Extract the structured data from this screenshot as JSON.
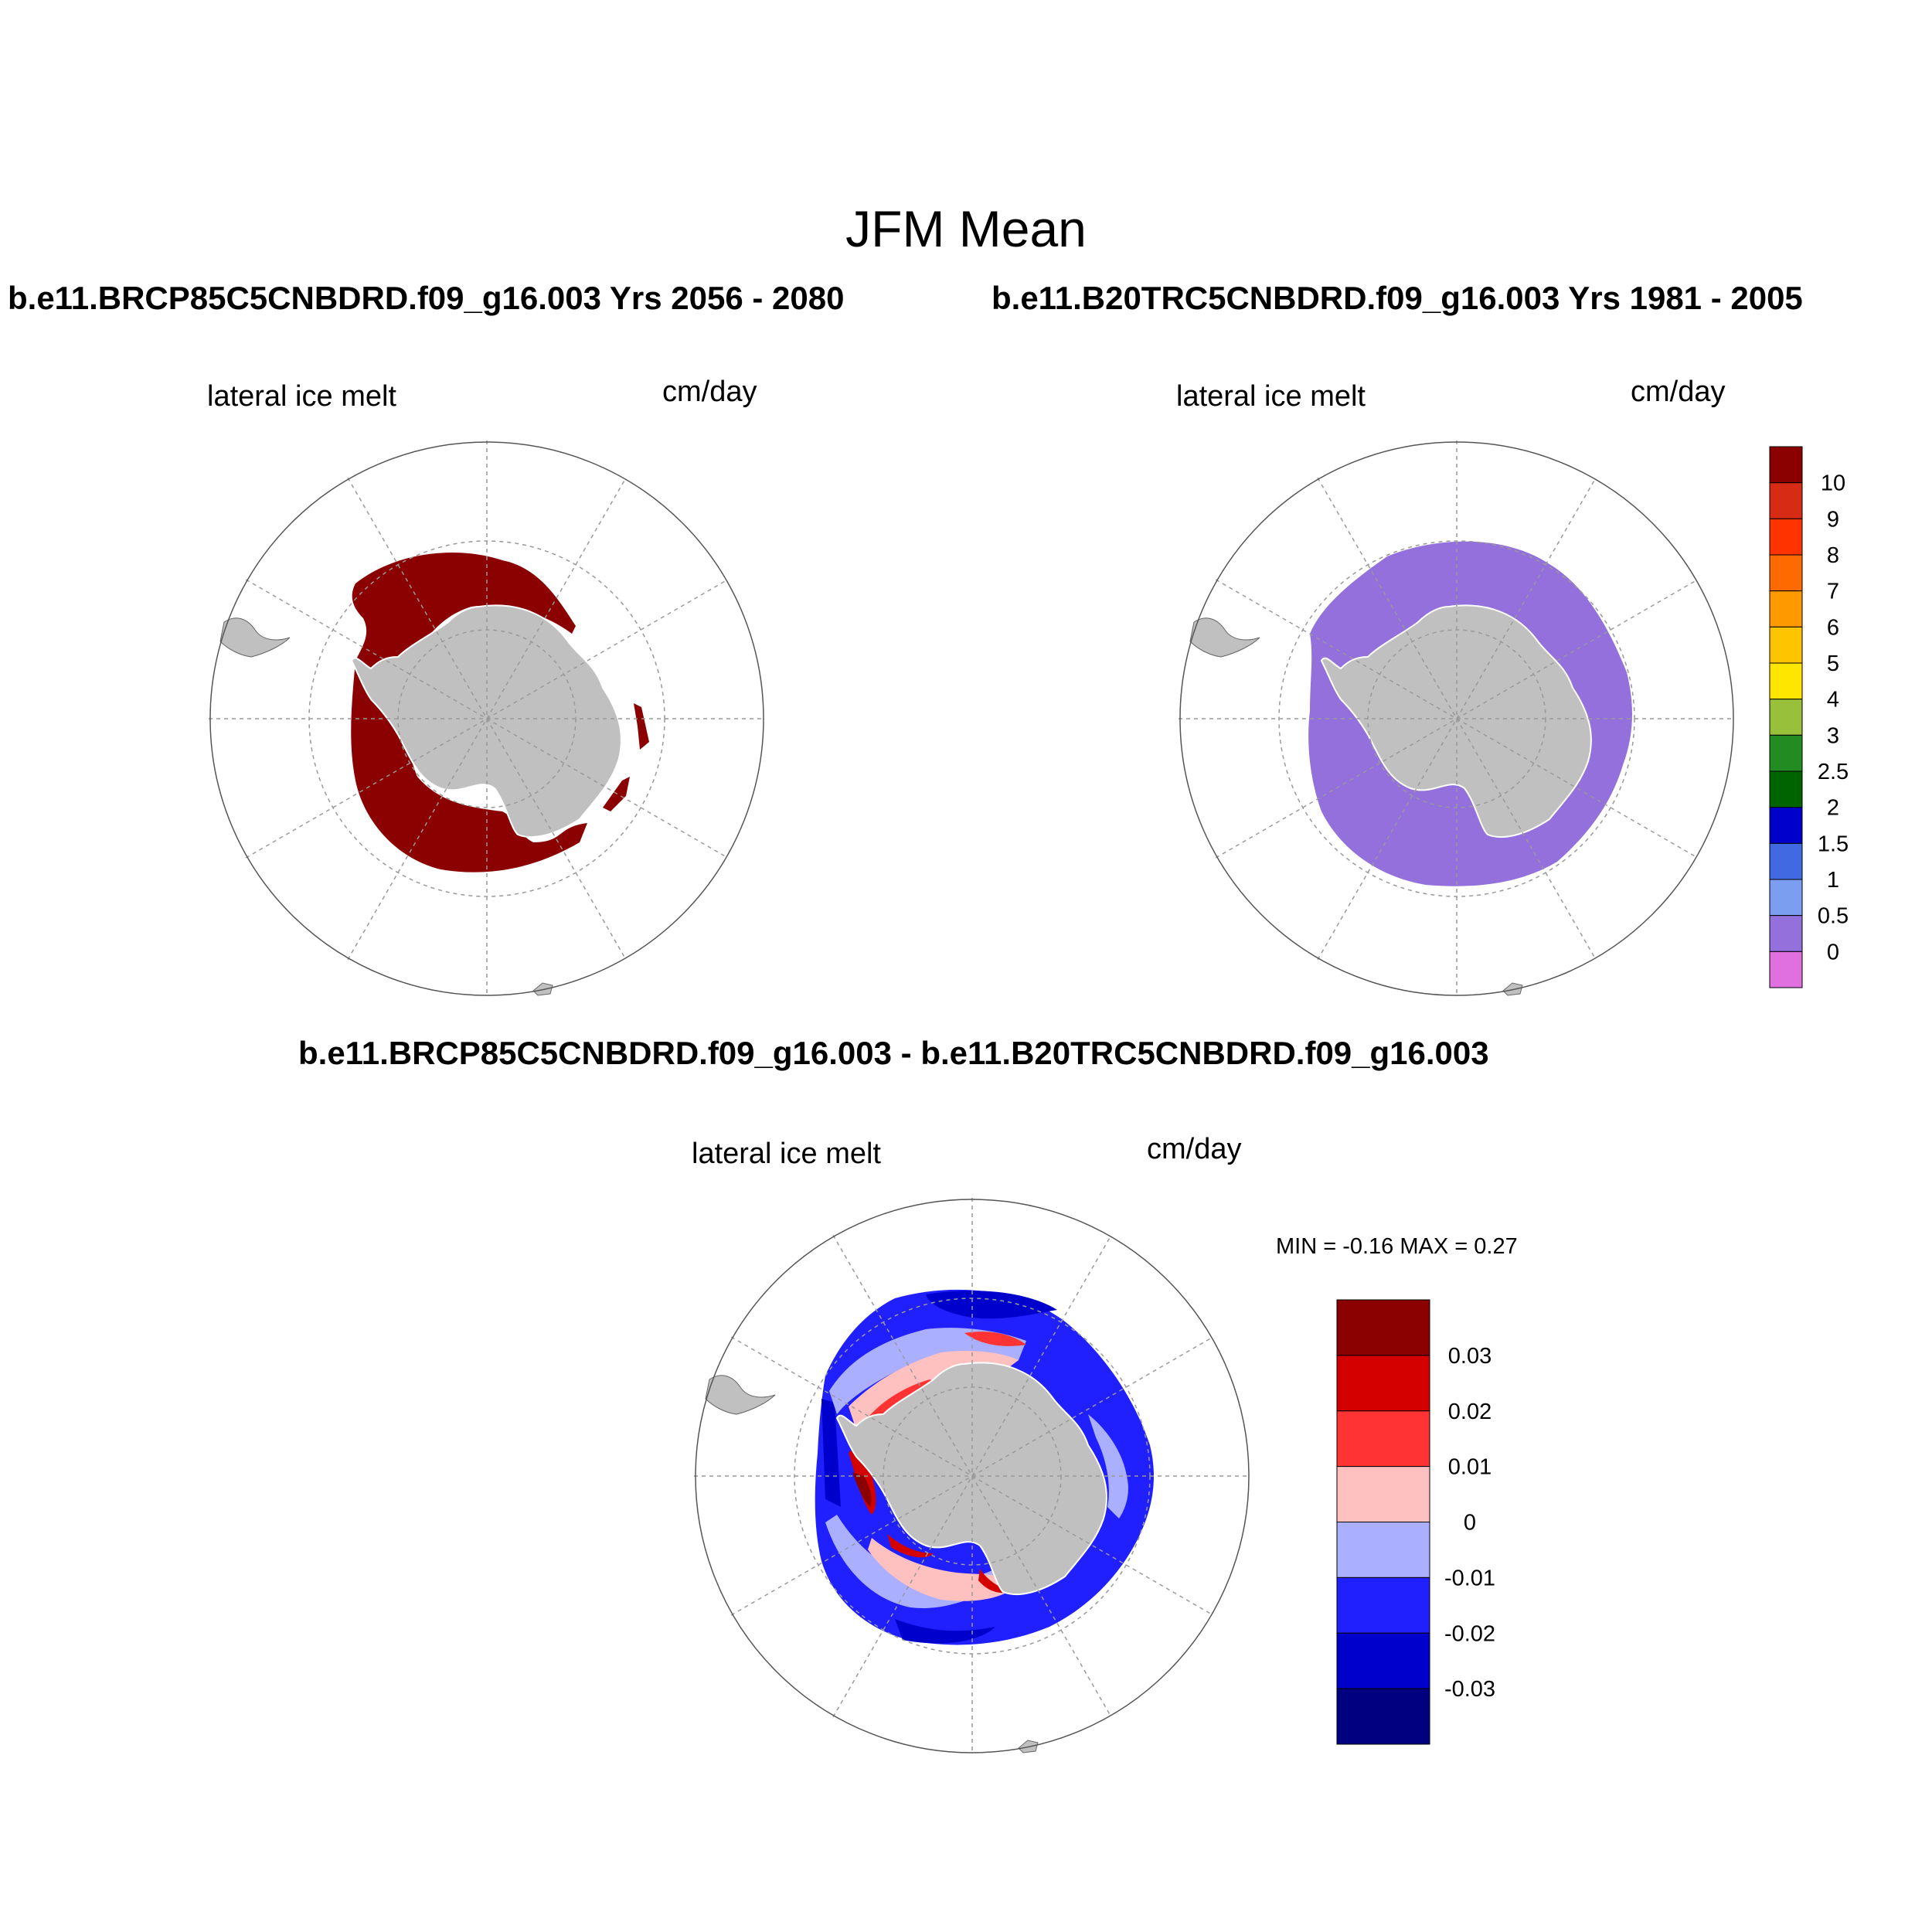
{
  "figure": {
    "title": "JFM Mean",
    "panels": [
      {
        "title": "b.e11.BRCP85C5CNBDRD.f09_g16.003  Yrs 2056 - 2080",
        "variable": "lateral ice melt",
        "units": "cm/day"
      },
      {
        "title": "b.e11.B20TRC5CNBDRD.f09_g16.003  Yrs 1981 - 2005",
        "variable": "lateral ice melt",
        "units": "cm/day"
      },
      {
        "title": "b.e11.BRCP85C5CNBDRD.f09_g16.003 - b.e11.B20TRC5CNBDRD.f09_g16.003",
        "variable": "lateral ice melt",
        "units": "cm/day",
        "min_max": "MIN =  -0.16 MAX =   0.27"
      }
    ]
  },
  "colorbars": {
    "absolute": {
      "labels": [
        "10",
        "9",
        "8",
        "7",
        "6",
        "5",
        "4",
        "3",
        "2.5",
        "2",
        "1.5",
        "1",
        "0.5",
        "0"
      ],
      "colors": [
        "#8b0000",
        "#d72b16",
        "#ff3300",
        "#ff6a00",
        "#ff9900",
        "#ffc400",
        "#ffe600",
        "#99c03a",
        "#228b22",
        "#006400",
        "#0000cd",
        "#4169e1",
        "#7b9ef0",
        "#9370db",
        "#e070e0"
      ]
    },
    "difference": {
      "labels": [
        "0.03",
        "0.02",
        "0.01",
        "0",
        "-0.01",
        "-0.02",
        "-0.03"
      ],
      "colors": [
        "#8b0000",
        "#d40000",
        "#ff3333",
        "#ffc0c0",
        "#aab0ff",
        "#2020ff",
        "#0000cd",
        "#000080"
      ]
    }
  },
  "map_colors": {
    "land": "#c0c0c0",
    "panel1_fill": "#8b0000",
    "panel2_fill": "#9370db",
    "grid": "#999999"
  }
}
